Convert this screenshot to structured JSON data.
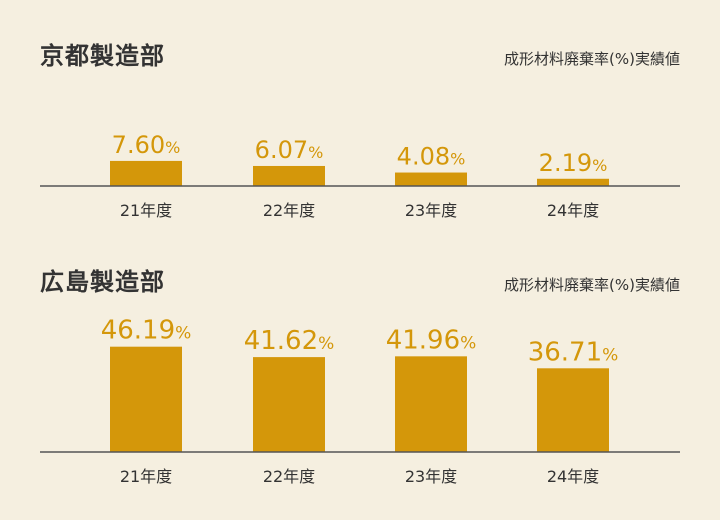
{
  "colors": {
    "bar": "#d4970a",
    "axis": "#555555",
    "background": "#f5efe0"
  },
  "chart_data": [
    {
      "type": "bar",
      "title": "京都製造部",
      "subtitle": "成形材料廃棄率(%)実績値",
      "categories": [
        "21年度",
        "22年度",
        "23年度",
        "24年度"
      ],
      "values": [
        7.6,
        6.07,
        4.08,
        2.19
      ],
      "value_labels": [
        "7.60",
        "6.07",
        "4.08",
        "2.19"
      ],
      "unit": "%"
    },
    {
      "type": "bar",
      "title": "広島製造部",
      "subtitle": "成形材料廃棄率(%)実績値",
      "categories": [
        "21年度",
        "22年度",
        "23年度",
        "24年度"
      ],
      "values": [
        46.19,
        41.62,
        41.96,
        36.71
      ],
      "value_labels": [
        "46.19",
        "41.62",
        "41.96",
        "36.71"
      ],
      "unit": "%"
    }
  ]
}
